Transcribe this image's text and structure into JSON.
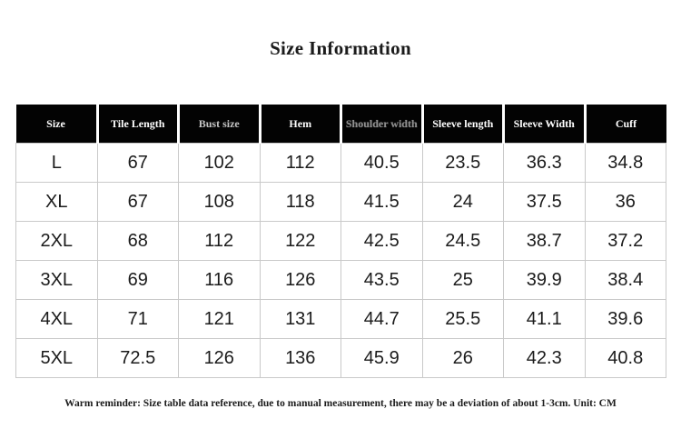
{
  "page": {
    "title": "Size Information",
    "footer": "Warm reminder: Size table data reference, due to manual measurement, there may be a deviation of about 1-3cm. Unit: CM",
    "unit": "CM"
  },
  "colors": {
    "background": "#ffffff",
    "header_bg": "#030303",
    "header_text": "#ffffff",
    "header_text_dim": "#c6c6c6",
    "header_text_dimmer": "#8f8f8f",
    "body_text": "#1b1b1b",
    "border": "#c9c9c9"
  },
  "chart_data": {
    "type": "table",
    "title": "Size Information",
    "columns": [
      "Size",
      "Tile Length",
      "Bust size",
      "Hem",
      "Shoulder width",
      "Sleeve length",
      "Sleeve Width",
      "Cuff"
    ],
    "rows": [
      [
        "L",
        "67",
        "102",
        "112",
        "40.5",
        "23.5",
        "36.3",
        "34.8"
      ],
      [
        "XL",
        "67",
        "108",
        "118",
        "41.5",
        "24",
        "37.5",
        "36"
      ],
      [
        "2XL",
        "68",
        "112",
        "122",
        "42.5",
        "24.5",
        "38.7",
        "37.2"
      ],
      [
        "3XL",
        "69",
        "116",
        "126",
        "43.5",
        "25",
        "39.9",
        "38.4"
      ],
      [
        "4XL",
        "71",
        "121",
        "131",
        "44.7",
        "25.5",
        "41.1",
        "39.6"
      ],
      [
        "5XL",
        "72.5",
        "126",
        "136",
        "45.9",
        "26",
        "42.3",
        "40.8"
      ]
    ],
    "unit": "CM",
    "note": "Warm reminder: Size table data reference, due to manual measurement, there may be a deviation of about 1-3cm. Unit: CM"
  }
}
